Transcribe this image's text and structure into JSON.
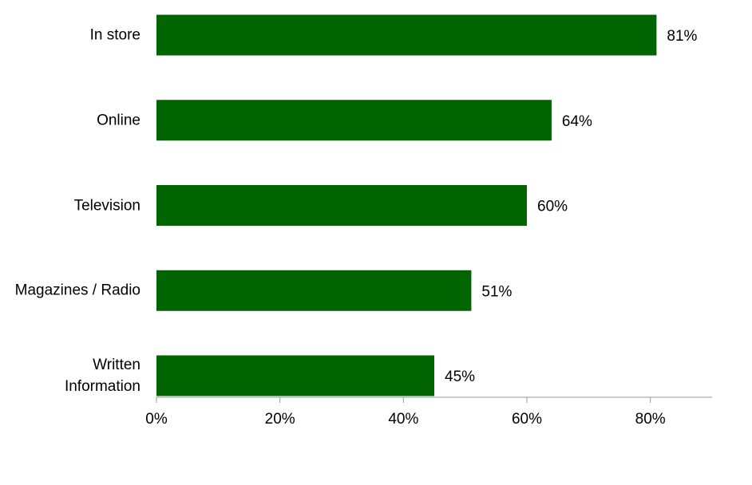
{
  "chart_data": {
    "type": "bar",
    "orientation": "horizontal",
    "categories": [
      "In store",
      "Online",
      "Television",
      "Magazines / Radio",
      "Written\nInformation"
    ],
    "values": [
      81,
      64,
      60,
      51,
      45
    ],
    "value_labels": [
      "81%",
      "64%",
      "60%",
      "51%",
      "45%"
    ],
    "color": "#006400",
    "xlim": [
      0,
      90
    ],
    "xticks": [
      {
        "value": 0,
        "label": "0%"
      },
      {
        "value": 20,
        "label": "20%"
      },
      {
        "value": 40,
        "label": "40%"
      },
      {
        "value": 60,
        "label": "60%"
      },
      {
        "value": 80,
        "label": "80%"
      }
    ],
    "grid": false
  }
}
